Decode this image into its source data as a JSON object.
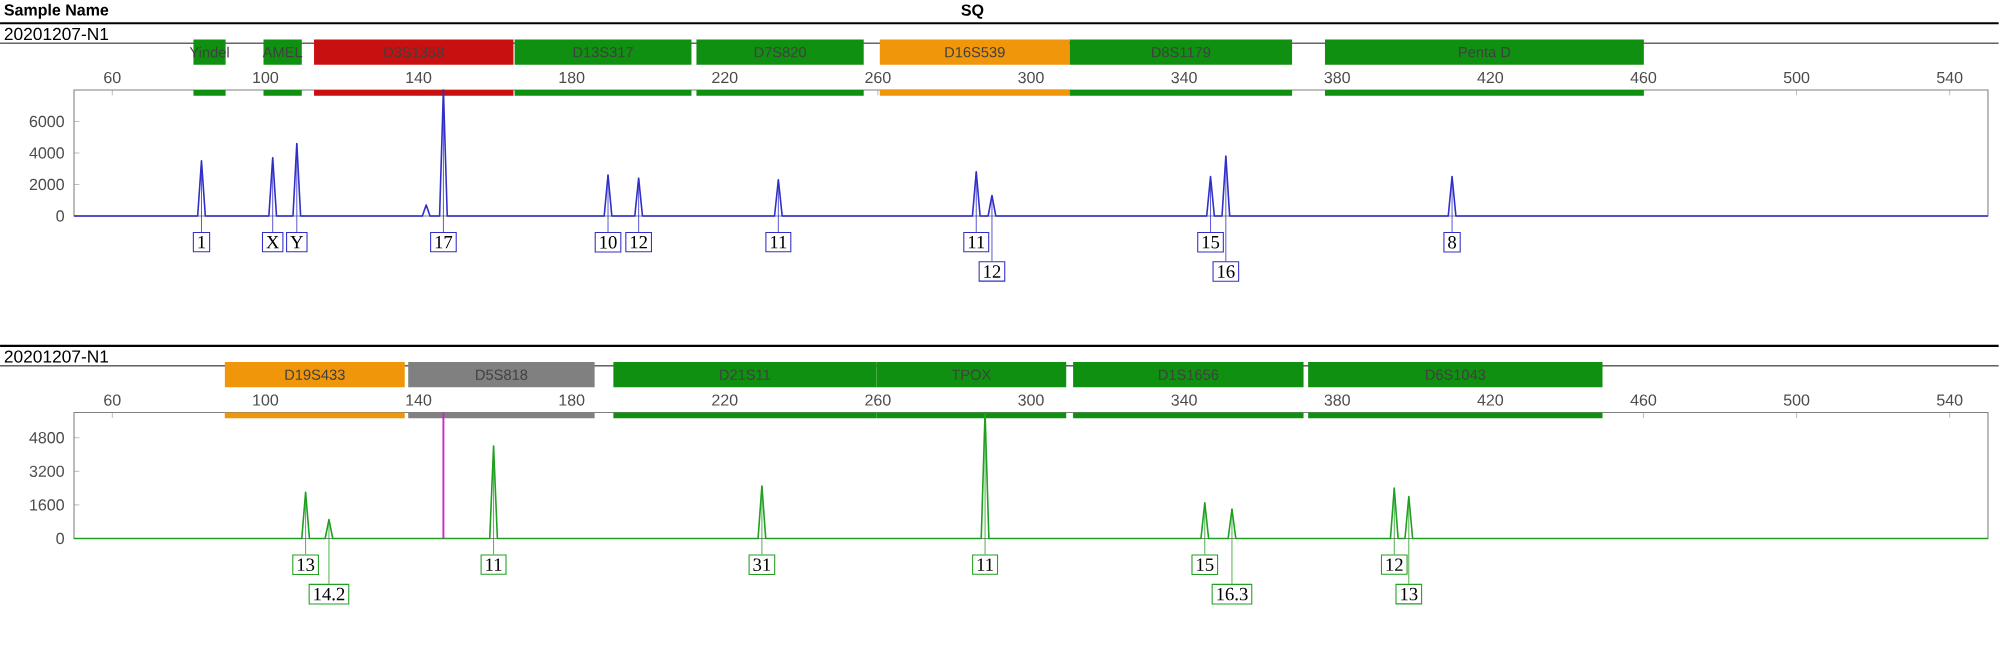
{
  "chart_data": [
    {
      "type": "line",
      "title": "20201207-N1",
      "annotations": [
        "Sample Name",
        "SQ",
        {
          "text": "1",
          "x": 83.3,
          "y": 3500
        },
        {
          "text": "X",
          "x": 101.9,
          "y": 3700
        },
        {
          "text": "Y",
          "x": 108.2,
          "y": 4600
        },
        {
          "text": "17",
          "x": 146.5,
          "y": 8000
        },
        {
          "text": "10",
          "x": 189.5,
          "y": 2600
        },
        {
          "text": "12",
          "x": 197.5,
          "y": 2400
        },
        {
          "text": "11",
          "x": 234,
          "y": 2300
        },
        {
          "text": "11",
          "x": 285.7,
          "y": 2800
        },
        {
          "text": "12",
          "x": 289.8,
          "y": 1300
        },
        {
          "text": "15",
          "x": 346.9,
          "y": 2500
        },
        {
          "text": "16",
          "x": 350.9,
          "y": 3800
        },
        {
          "text": "8",
          "x": 410,
          "y": 2500
        }
      ],
      "series": [
        {
          "color": "#3030c8",
          "x": [
            50,
            82.3,
            83.3,
            84.3,
            100.9,
            101.9,
            102.9,
            107.2,
            108.2,
            109.2,
            141,
            142,
            143,
            145.5,
            146.5,
            147.5,
            188.5,
            189.5,
            190.5,
            196.5,
            197.5,
            198.5,
            233,
            234,
            235,
            284.7,
            285.7,
            286.7,
            288.8,
            289.8,
            290.8,
            345.9,
            346.9,
            347.9,
            349.9,
            350.9,
            351.9,
            409,
            410,
            411,
            550
          ],
          "values": [
            0,
            0,
            3500,
            0,
            0,
            3700,
            0,
            0,
            4600,
            0,
            0,
            700,
            0,
            0,
            8000,
            0,
            0,
            2600,
            0,
            0,
            2400,
            0,
            0,
            2300,
            0,
            0,
            2800,
            0,
            0,
            1300,
            0,
            0,
            2500,
            0,
            0,
            3800,
            0,
            0,
            2500,
            0,
            0
          ]
        }
      ],
      "xlim": [
        50,
        550
      ],
      "ylim": [
        0,
        8000
      ],
      "xticks": [
        60,
        100,
        140,
        180,
        220,
        260,
        300,
        340,
        380,
        420,
        460,
        500,
        540
      ],
      "yticks": [
        0,
        2000,
        4000,
        6000
      ],
      "bands": [
        {
          "axis": "x",
          "from": 81.2,
          "to": 89.6,
          "label": "Yindel",
          "color": "#109010"
        },
        {
          "axis": "x",
          "from": 99.5,
          "to": 109.5,
          "label": "AMEL",
          "color": "#109010"
        },
        {
          "axis": "x",
          "from": 112.7,
          "to": 164.8,
          "label": "D3S1358",
          "color": "#c81010"
        },
        {
          "axis": "x",
          "from": 165.1,
          "to": 211.3,
          "label": "D13S317",
          "color": "#109010"
        },
        {
          "axis": "x",
          "from": 212.6,
          "to": 256.3,
          "label": "D7S820",
          "color": "#109010"
        },
        {
          "axis": "x",
          "from": 260.5,
          "to": 310.1,
          "label": "D16S539",
          "color": "#f0960a"
        },
        {
          "axis": "x",
          "from": 310.1,
          "to": 368.2,
          "label": "D8S1179",
          "color": "#109010"
        },
        {
          "axis": "x",
          "from": 376.8,
          "to": 460.1,
          "label": "Penta D",
          "color": "#109010"
        }
      ]
    },
    {
      "type": "line",
      "title": "20201207-N1",
      "annotations": [
        {
          "text": "13",
          "x": 110.5,
          "y": 2200
        },
        {
          "text": "14.2",
          "x": 116.6,
          "y": 900
        },
        {
          "text": "11",
          "x": 159.6,
          "y": 4400
        },
        {
          "text": "31",
          "x": 229.7,
          "y": 2500
        },
        {
          "text": "11",
          "x": 288,
          "y": 6000
        },
        {
          "text": "15",
          "x": 345.4,
          "y": 1700
        },
        {
          "text": "16.3",
          "x": 352.5,
          "y": 1400
        },
        {
          "text": "12",
          "x": 394.9,
          "y": 2400
        },
        {
          "text": "13",
          "x": 398.7,
          "y": 2000
        }
      ],
      "series": [
        {
          "color": "#20a020",
          "x": [
            50,
            109.5,
            110.5,
            111.5,
            115.6,
            116.6,
            117.6,
            158.6,
            159.6,
            160.6,
            228.7,
            229.7,
            230.7,
            287,
            288,
            289,
            344.4,
            345.4,
            346.4,
            351.5,
            352.5,
            353.5,
            393.9,
            394.9,
            395.9,
            397.7,
            398.7,
            399.7,
            550
          ],
          "values": [
            0,
            0,
            2200,
            0,
            0,
            900,
            0,
            0,
            4400,
            0,
            0,
            2500,
            0,
            0,
            6000,
            0,
            0,
            1700,
            0,
            0,
            1400,
            0,
            0,
            2400,
            0,
            0,
            2000,
            0,
            0
          ]
        }
      ],
      "xlim": [
        50,
        550
      ],
      "ylim": [
        0,
        6000
      ],
      "xticks": [
        60,
        100,
        140,
        180,
        220,
        260,
        300,
        340,
        380,
        420,
        460,
        500,
        540
      ],
      "yticks": [
        0,
        1600,
        3200,
        4800
      ],
      "ref_lines": [
        {
          "axis": "x",
          "value": 146.5,
          "color": "#d020d0"
        }
      ],
      "bands": [
        {
          "axis": "x",
          "from": 89.4,
          "to": 136.4,
          "label": "D19S433",
          "color": "#f0960a"
        },
        {
          "axis": "x",
          "from": 137.3,
          "to": 186,
          "label": "D5S818",
          "color": "#808080"
        },
        {
          "axis": "x",
          "from": 190.9,
          "to": 259.6,
          "label": "D21S11",
          "color": "#109010"
        },
        {
          "axis": "x",
          "from": 259.6,
          "to": 309.2,
          "label": "TPOX",
          "color": "#109010"
        },
        {
          "axis": "x",
          "from": 311,
          "to": 371.2,
          "label": "D1S1656",
          "color": "#109010"
        },
        {
          "axis": "x",
          "from": 372.4,
          "to": 449.3,
          "label": "D6S1043",
          "color": "#109010"
        }
      ]
    }
  ]
}
